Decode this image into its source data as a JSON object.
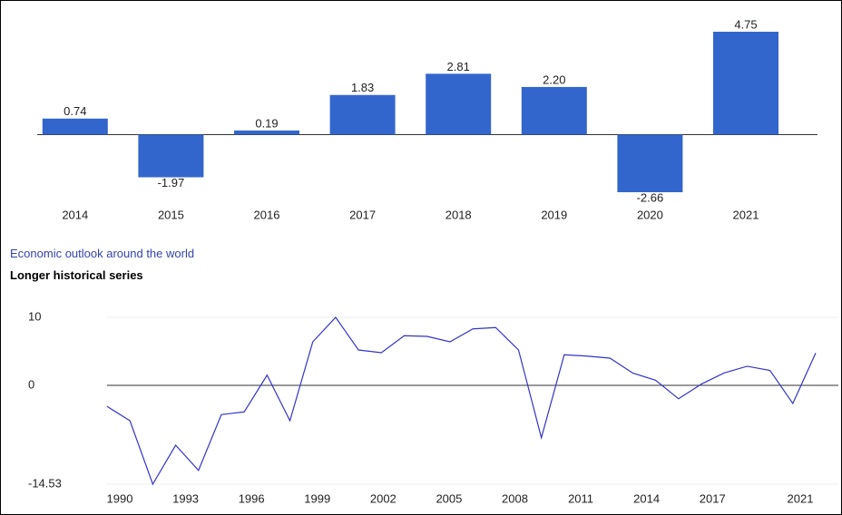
{
  "chart_data": [
    {
      "type": "bar",
      "categories": [
        "2014",
        "2015",
        "2016",
        "2017",
        "2018",
        "2019",
        "2020",
        "2021"
      ],
      "values": [
        0.74,
        -1.97,
        0.19,
        1.83,
        2.81,
        2.2,
        -2.66,
        4.75
      ],
      "value_labels": [
        "0.74",
        "-1.97",
        "0.19",
        "1.83",
        "2.81",
        "2.20",
        "-2.66",
        "4.75"
      ],
      "color": "#3366cc"
    },
    {
      "type": "line",
      "x": [
        1990,
        1991,
        1992,
        1993,
        1994,
        1995,
        1996,
        1997,
        1998,
        1999,
        2000,
        2001,
        2002,
        2003,
        2004,
        2005,
        2006,
        2007,
        2008,
        2009,
        2010,
        2011,
        2012,
        2013,
        2014,
        2015,
        2016,
        2017,
        2018,
        2019,
        2020,
        2021
      ],
      "values": [
        -3.1,
        -5.2,
        -14.53,
        -8.8,
        -12.5,
        -4.3,
        -3.9,
        1.5,
        -5.2,
        6.4,
        10,
        5.2,
        4.8,
        7.3,
        7.2,
        6.4,
        8.3,
        8.5,
        5.2,
        -7.7,
        4.5,
        4.3,
        4.0,
        1.8,
        0.74,
        -1.97,
        0.19,
        1.83,
        2.81,
        2.2,
        -2.66,
        4.75
      ],
      "color": "#3333cc",
      "xlim": [
        1990,
        2021
      ],
      "xticks": [
        1990,
        1993,
        1996,
        1999,
        2002,
        2005,
        2008,
        2011,
        2014,
        2017,
        2021
      ],
      "ylim": [
        -14.53,
        10
      ],
      "yticks": [
        10,
        0,
        -14.53
      ],
      "grid": true
    }
  ],
  "link": "Economic outlook around the world",
  "heading": "Longer historical series"
}
